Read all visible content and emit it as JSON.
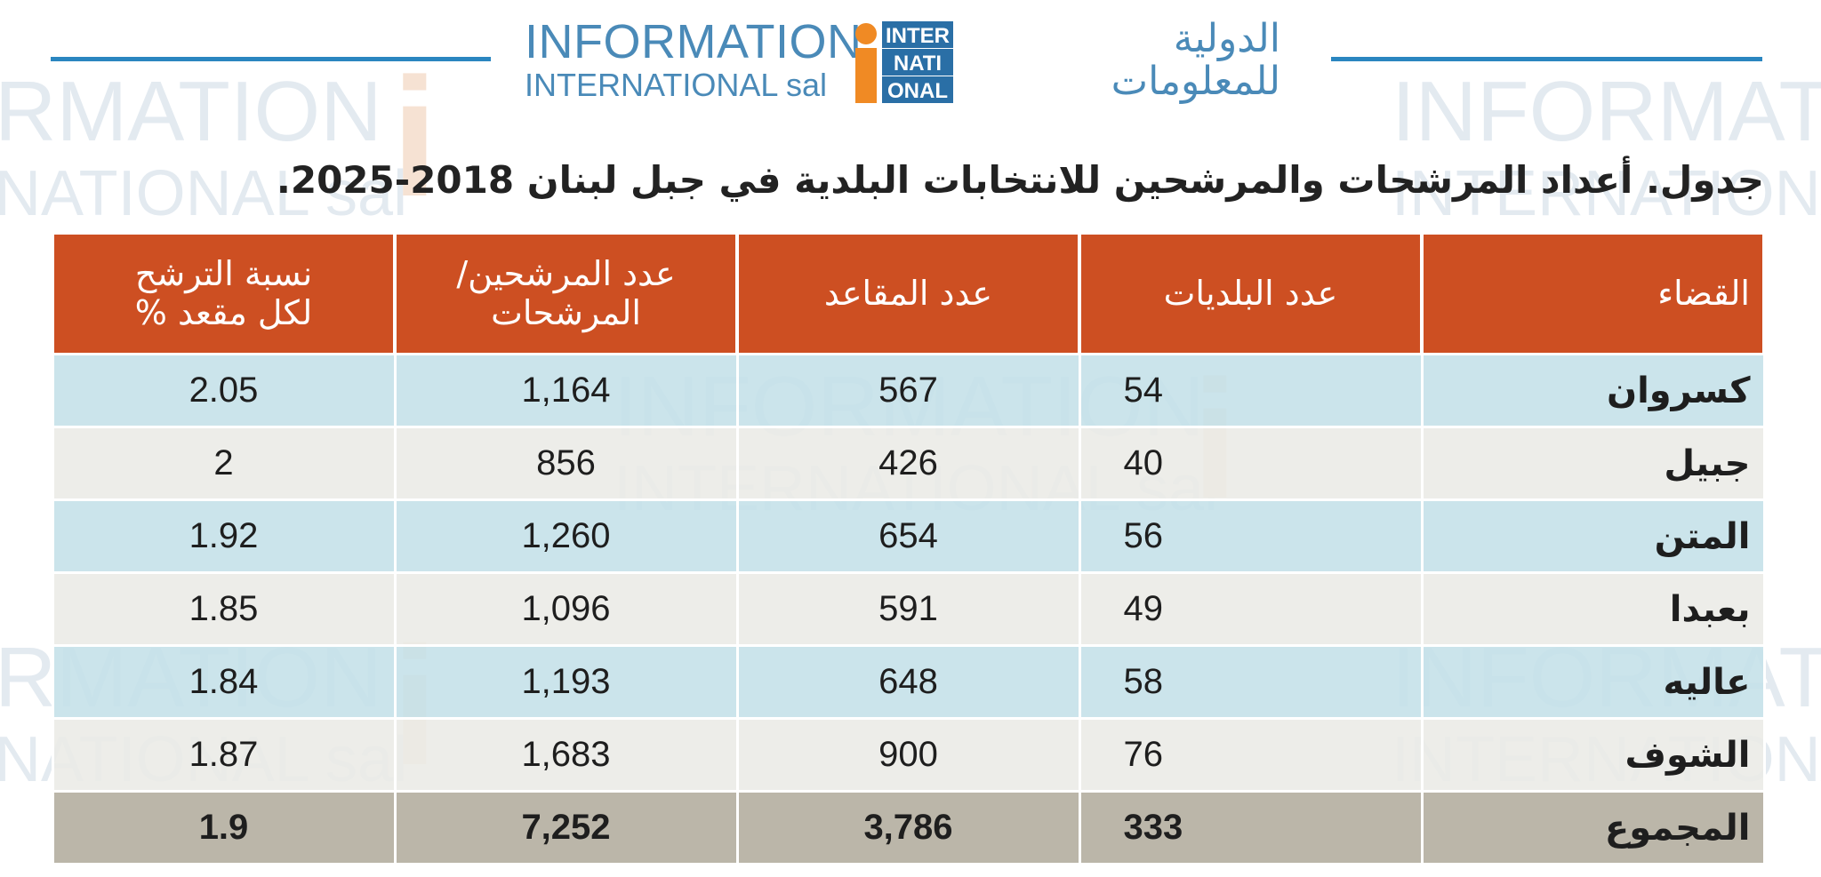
{
  "logo": {
    "en_line1": "INFORMATION",
    "en_line2": "INTERNATIONAL sal",
    "ar_line1": "الدولية",
    "ar_line2": "للمعلومات",
    "mark_letter": "i",
    "mark_words": [
      "INTER",
      "NATI",
      "ONAL"
    ]
  },
  "watermark": {
    "line1": "INFORMATION",
    "line2": "INTERNATIONAL sal",
    "fragment_line1": "RMATION",
    "fragment_line2": "NATIONAL sal"
  },
  "title": "جدول. أعداد المرشحات والمرشحين للانتخابات البلدية في جبل لبنان 2018-2025.",
  "table": {
    "headers": {
      "district": "القضاء",
      "municipalities": "عدد البلديات",
      "seats": "عدد المقاعد",
      "candidates_line1": "عدد المرشحين/",
      "candidates_line2": "المرشحات",
      "ratio_line1": "نسبة الترشح",
      "ratio_line2": "لكل مقعد %"
    },
    "rows": [
      {
        "district": "كسروان",
        "municipalities": "54",
        "seats": "567",
        "candidates": "1,164",
        "ratio": "2.05"
      },
      {
        "district": "جبيل",
        "municipalities": "40",
        "seats": "426",
        "candidates": "856",
        "ratio": "2"
      },
      {
        "district": "المتن",
        "municipalities": "56",
        "seats": "654",
        "candidates": "1,260",
        "ratio": "1.92"
      },
      {
        "district": "بعبدا",
        "municipalities": "49",
        "seats": "591",
        "candidates": "1,096",
        "ratio": "1.85"
      },
      {
        "district": "عاليه",
        "municipalities": "58",
        "seats": "648",
        "candidates": "1,193",
        "ratio": "1.84"
      },
      {
        "district": "الشوف",
        "municipalities": "76",
        "seats": "900",
        "candidates": "1,683",
        "ratio": "1.87"
      }
    ],
    "total": {
      "district": "المجموع",
      "municipalities": "333",
      "seats": "3,786",
      "candidates": "7,252",
      "ratio": "1.9"
    }
  },
  "colors": {
    "header_bg": "#cd4f22",
    "row_blue": "#c4e0e8",
    "row_gray": "#ebeae6",
    "total_bg": "#bbb6a9",
    "brand_blue": "#4a8ab8",
    "brand_orange": "#f08a24",
    "rule_blue": "#2a86c0"
  }
}
